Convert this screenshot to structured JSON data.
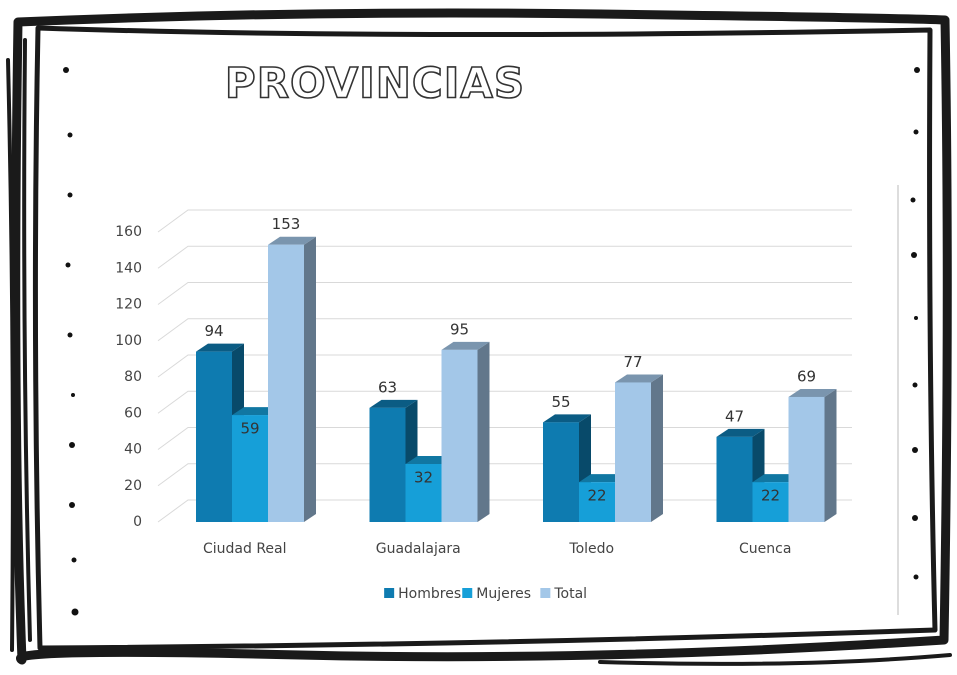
{
  "chart_data": {
    "type": "bar3d",
    "title": "PROVINCIAS",
    "categories": [
      "Ciudad Real",
      "Guadalajara",
      "Toledo",
      "Cuenca"
    ],
    "series": [
      {
        "name": "Hombres",
        "color": "#0e7bb0",
        "values": [
          94,
          63,
          55,
          47
        ]
      },
      {
        "name": "Mujeres",
        "color": "#169fd8",
        "values": [
          59,
          32,
          22,
          22
        ]
      },
      {
        "name": "Total",
        "color": "#a3c7e8",
        "values": [
          153,
          95,
          77,
          69
        ]
      }
    ],
    "ylim": [
      0,
      160
    ],
    "yticks": [
      0,
      20,
      40,
      60,
      80,
      100,
      120,
      140,
      160
    ],
    "grid": true,
    "legend": "bottom"
  }
}
